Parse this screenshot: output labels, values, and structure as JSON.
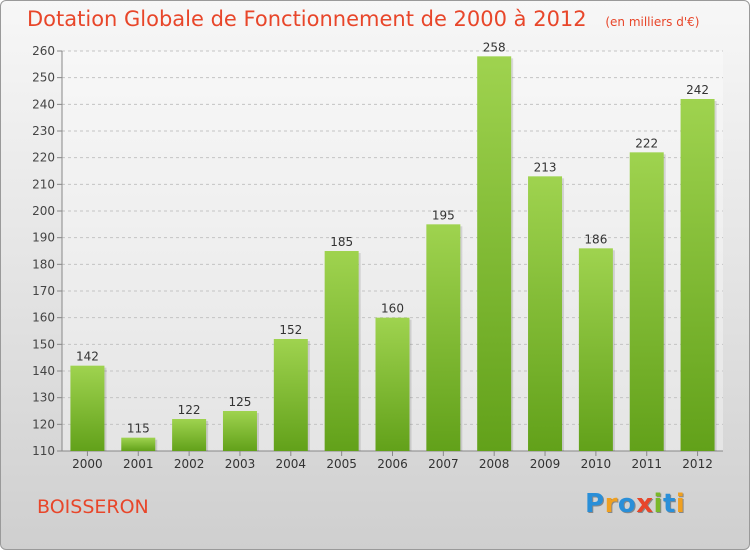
{
  "header": {
    "title": "Dotation Globale de Fonctionnement de 2000 à 2012",
    "unit": "(en milliers d'€)"
  },
  "footer": {
    "city": "BOISSERON",
    "logo": "Proxiti"
  },
  "colors": {
    "title": "#e8462a",
    "bar_top": "#9fd34f",
    "bar_bottom": "#62a11a",
    "logo": [
      "#2a8fd8",
      "#f0a020",
      "#2a8fd8",
      "#e8462a",
      "#7ab82a",
      "#2a8fd8",
      "#f0a020"
    ]
  },
  "chart_data": {
    "type": "bar",
    "title": "Dotation Globale de Fonctionnement de 2000 à 2012",
    "categories": [
      "2000",
      "2001",
      "2002",
      "2003",
      "2004",
      "2005",
      "2006",
      "2007",
      "2008",
      "2009",
      "2010",
      "2011",
      "2012"
    ],
    "values": [
      142,
      115,
      122,
      125,
      152,
      185,
      160,
      195,
      258,
      213,
      186,
      222,
      242
    ],
    "ylim": [
      110,
      260
    ],
    "yticks": [
      110,
      120,
      130,
      140,
      150,
      160,
      170,
      180,
      190,
      200,
      210,
      220,
      230,
      240,
      250,
      260
    ],
    "grid": true,
    "xlabel": "",
    "ylabel": ""
  }
}
